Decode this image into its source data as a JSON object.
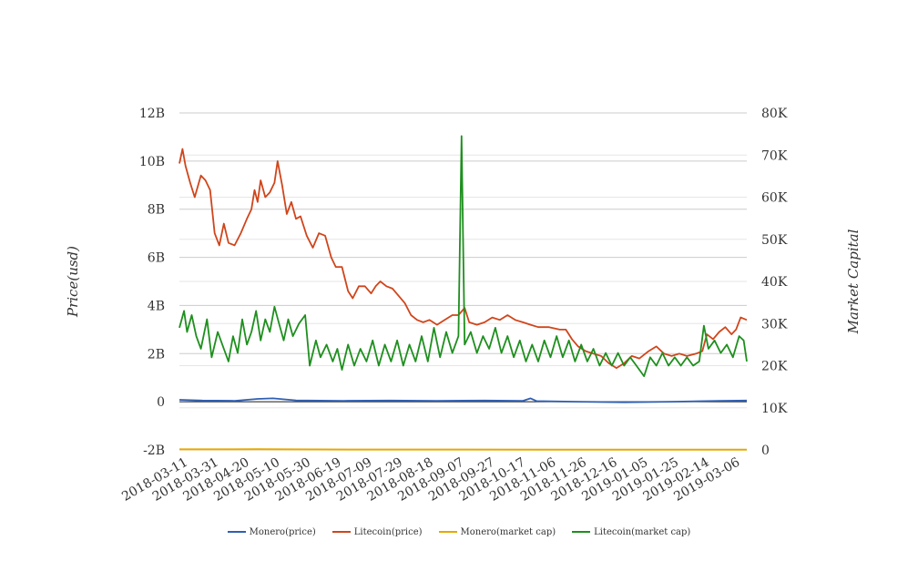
{
  "chart_data": {
    "type": "line",
    "y_left_label": "Price(usd)",
    "y_right_label": "Market Capital",
    "y_left_ticks": [
      "-2B",
      "0",
      "2B",
      "4B",
      "6B",
      "8B",
      "10B",
      "12B"
    ],
    "y_right_ticks": [
      "0",
      "10K",
      "20K",
      "30K",
      "40K",
      "50K",
      "60K",
      "70K",
      "80K"
    ],
    "y_left_range": [
      -2000000000,
      12000000000
    ],
    "y_right_range": [
      0,
      80000
    ],
    "x_start": "2018-03-05",
    "x_end": "2019-03-10",
    "x_ticks": [
      "2018-03-11",
      "2018-03-31",
      "2018-04-20",
      "2018-05-10",
      "2018-05-30",
      "2018-06-19",
      "2018-07-09",
      "2018-07-29",
      "2018-08-18",
      "2018-09-07",
      "2018-09-27",
      "2018-10-17",
      "2018-11-06",
      "2018-11-26",
      "2018-12-16",
      "2019-01-05",
      "2019-01-25",
      "2019-02-14",
      "2019-03-06"
    ],
    "grid": true,
    "legend_position": "bottom",
    "series": [
      {
        "name": "Monero(price)",
        "color": "#2f5fb3",
        "axis": "left",
        "points": [
          [
            "2018-03-05",
            80000000.0
          ],
          [
            "2018-03-20",
            50000000.0
          ],
          [
            "2018-04-10",
            40000000.0
          ],
          [
            "2018-04-25",
            120000000.0
          ],
          [
            "2018-05-05",
            140000000.0
          ],
          [
            "2018-05-20",
            60000000.0
          ],
          [
            "2018-06-20",
            40000000.0
          ],
          [
            "2018-07-20",
            50000000.0
          ],
          [
            "2018-08-20",
            40000000.0
          ],
          [
            "2018-09-20",
            50000000.0
          ],
          [
            "2018-10-15",
            40000000.0
          ],
          [
            "2018-10-20",
            140000000.0
          ],
          [
            "2018-10-24",
            30000000.0
          ],
          [
            "2018-11-20",
            0.0
          ],
          [
            "2018-12-20",
            -20000000.0
          ],
          [
            "2019-01-20",
            0.0
          ],
          [
            "2019-02-20",
            40000000.0
          ],
          [
            "2019-03-10",
            50000000.0
          ]
        ]
      },
      {
        "name": "Litecoin(price)",
        "color": "#d0451b",
        "axis": "left",
        "points": [
          [
            "2018-03-05",
            9900000000.0
          ],
          [
            "2018-03-07",
            10500000000.0
          ],
          [
            "2018-03-09",
            9800000000.0
          ],
          [
            "2018-03-12",
            9100000000.0
          ],
          [
            "2018-03-15",
            8500000000.0
          ],
          [
            "2018-03-19",
            9400000000.0
          ],
          [
            "2018-03-22",
            9200000000.0
          ],
          [
            "2018-03-25",
            8800000000.0
          ],
          [
            "2018-03-28",
            7000000000.0
          ],
          [
            "2018-03-31",
            6500000000.0
          ],
          [
            "2018-04-03",
            7400000000.0
          ],
          [
            "2018-04-06",
            6600000000.0
          ],
          [
            "2018-04-10",
            6500000000.0
          ],
          [
            "2018-04-14",
            7000000000.0
          ],
          [
            "2018-04-18",
            7600000000.0
          ],
          [
            "2018-04-21",
            8000000000.0
          ],
          [
            "2018-04-23",
            8800000000.0
          ],
          [
            "2018-04-25",
            8300000000.0
          ],
          [
            "2018-04-27",
            9200000000.0
          ],
          [
            "2018-04-30",
            8500000000.0
          ],
          [
            "2018-05-03",
            8700000000.0
          ],
          [
            "2018-05-06",
            9100000000.0
          ],
          [
            "2018-05-08",
            10000000000.0
          ],
          [
            "2018-05-11",
            9000000000.0
          ],
          [
            "2018-05-14",
            7800000000.0
          ],
          [
            "2018-05-17",
            8300000000.0
          ],
          [
            "2018-05-20",
            7600000000.0
          ],
          [
            "2018-05-23",
            7700000000.0
          ],
          [
            "2018-05-27",
            6900000000.0
          ],
          [
            "2018-05-31",
            6400000000.0
          ],
          [
            "2018-06-04",
            7000000000.0
          ],
          [
            "2018-06-08",
            6900000000.0
          ],
          [
            "2018-06-12",
            6000000000.0
          ],
          [
            "2018-06-15",
            5600000000.0
          ],
          [
            "2018-06-19",
            5600000000.0
          ],
          [
            "2018-06-23",
            4600000000.0
          ],
          [
            "2018-06-26",
            4300000000.0
          ],
          [
            "2018-06-30",
            4800000000.0
          ],
          [
            "2018-07-04",
            4800000000.0
          ],
          [
            "2018-07-08",
            4500000000.0
          ],
          [
            "2018-07-11",
            4800000000.0
          ],
          [
            "2018-07-14",
            5000000000.0
          ],
          [
            "2018-07-18",
            4800000000.0
          ],
          [
            "2018-07-22",
            4700000000.0
          ],
          [
            "2018-07-26",
            4400000000.0
          ],
          [
            "2018-07-30",
            4100000000.0
          ],
          [
            "2018-08-03",
            3600000000.0
          ],
          [
            "2018-08-07",
            3400000000.0
          ],
          [
            "2018-08-11",
            3300000000.0
          ],
          [
            "2018-08-15",
            3400000000.0
          ],
          [
            "2018-08-20",
            3200000000.0
          ],
          [
            "2018-08-25",
            3400000000.0
          ],
          [
            "2018-08-30",
            3600000000.0
          ],
          [
            "2018-09-03",
            3600000000.0
          ],
          [
            "2018-09-07",
            3900000000.0
          ],
          [
            "2018-09-10",
            3300000000.0
          ],
          [
            "2018-09-15",
            3200000000.0
          ],
          [
            "2018-09-20",
            3300000000.0
          ],
          [
            "2018-09-25",
            3500000000.0
          ],
          [
            "2018-09-30",
            3400000000.0
          ],
          [
            "2018-10-05",
            3600000000.0
          ],
          [
            "2018-10-10",
            3400000000.0
          ],
          [
            "2018-10-15",
            3300000000.0
          ],
          [
            "2018-10-20",
            3200000000.0
          ],
          [
            "2018-10-25",
            3100000000.0
          ],
          [
            "2018-11-01",
            3100000000.0
          ],
          [
            "2018-11-08",
            3000000000.0
          ],
          [
            "2018-11-12",
            3000000000.0
          ],
          [
            "2018-11-16",
            2600000000.0
          ],
          [
            "2018-11-20",
            2300000000.0
          ],
          [
            "2018-11-25",
            2100000000.0
          ],
          [
            "2018-11-30",
            2000000000.0
          ],
          [
            "2018-12-05",
            1900000000.0
          ],
          [
            "2018-12-10",
            1600000000.0
          ],
          [
            "2018-12-15",
            1400000000.0
          ],
          [
            "2018-12-20",
            1600000000.0
          ],
          [
            "2018-12-25",
            1900000000.0
          ],
          [
            "2018-12-30",
            1800000000.0
          ],
          [
            "2019-01-05",
            2100000000.0
          ],
          [
            "2019-01-10",
            2300000000.0
          ],
          [
            "2019-01-15",
            2000000000.0
          ],
          [
            "2019-01-20",
            1900000000.0
          ],
          [
            "2019-01-25",
            2000000000.0
          ],
          [
            "2019-01-30",
            1900000000.0
          ],
          [
            "2019-02-05",
            2000000000.0
          ],
          [
            "2019-02-09",
            2100000000.0
          ],
          [
            "2019-02-12",
            2800000000.0
          ],
          [
            "2019-02-16",
            2600000000.0
          ],
          [
            "2019-02-20",
            2900000000.0
          ],
          [
            "2019-02-24",
            3100000000.0
          ],
          [
            "2019-02-28",
            2800000000.0
          ],
          [
            "2019-03-03",
            3000000000.0
          ],
          [
            "2019-03-06",
            3500000000.0
          ],
          [
            "2019-03-10",
            3400000000.0
          ]
        ]
      },
      {
        "name": "Monero(market cap)",
        "color": "#e6a800",
        "axis": "right",
        "points": [
          [
            "2018-03-05",
            120
          ],
          [
            "2018-04-25",
            160
          ],
          [
            "2018-05-10",
            140
          ],
          [
            "2018-07-01",
            90
          ],
          [
            "2018-09-01",
            80
          ],
          [
            "2018-11-01",
            60
          ],
          [
            "2019-01-01",
            40
          ],
          [
            "2019-03-10",
            50
          ]
        ]
      },
      {
        "name": "Litecoin(market cap)",
        "color": "#1e8f1e",
        "axis": "right",
        "points": [
          [
            "2018-03-05",
            29000
          ],
          [
            "2018-03-08",
            33000
          ],
          [
            "2018-03-10",
            28000
          ],
          [
            "2018-03-13",
            32000
          ],
          [
            "2018-03-16",
            27000
          ],
          [
            "2018-03-19",
            24000
          ],
          [
            "2018-03-23",
            31000
          ],
          [
            "2018-03-26",
            22000
          ],
          [
            "2018-03-30",
            28000
          ],
          [
            "2018-04-03",
            24000
          ],
          [
            "2018-04-06",
            21000
          ],
          [
            "2018-04-09",
            27000
          ],
          [
            "2018-04-12",
            23000
          ],
          [
            "2018-04-15",
            31000
          ],
          [
            "2018-04-18",
            25000
          ],
          [
            "2018-04-21",
            28000
          ],
          [
            "2018-04-24",
            33000
          ],
          [
            "2018-04-27",
            26000
          ],
          [
            "2018-04-30",
            31000
          ],
          [
            "2018-05-03",
            28000
          ],
          [
            "2018-05-06",
            34000
          ],
          [
            "2018-05-09",
            30000
          ],
          [
            "2018-05-12",
            26000
          ],
          [
            "2018-05-15",
            31000
          ],
          [
            "2018-05-18",
            27000
          ],
          [
            "2018-05-22",
            30000
          ],
          [
            "2018-05-26",
            32000
          ],
          [
            "2018-05-29",
            20000
          ],
          [
            "2018-06-02",
            26000
          ],
          [
            "2018-06-05",
            22000
          ],
          [
            "2018-06-09",
            25000
          ],
          [
            "2018-06-13",
            21000
          ],
          [
            "2018-06-16",
            24000
          ],
          [
            "2018-06-19",
            19000
          ],
          [
            "2018-06-23",
            25000
          ],
          [
            "2018-06-27",
            20000
          ],
          [
            "2018-07-01",
            24000
          ],
          [
            "2018-07-05",
            21000
          ],
          [
            "2018-07-09",
            26000
          ],
          [
            "2018-07-13",
            20000
          ],
          [
            "2018-07-17",
            25000
          ],
          [
            "2018-07-21",
            21000
          ],
          [
            "2018-07-25",
            26000
          ],
          [
            "2018-07-29",
            20000
          ],
          [
            "2018-08-02",
            25000
          ],
          [
            "2018-08-06",
            21000
          ],
          [
            "2018-08-10",
            27000
          ],
          [
            "2018-08-14",
            21000
          ],
          [
            "2018-08-18",
            29000
          ],
          [
            "2018-08-22",
            22000
          ],
          [
            "2018-08-26",
            28000
          ],
          [
            "2018-08-30",
            23000
          ],
          [
            "2018-09-03",
            27000
          ],
          [
            "2018-09-05",
            74500
          ],
          [
            "2018-09-07",
            25000
          ],
          [
            "2018-09-11",
            28000
          ],
          [
            "2018-09-15",
            23000
          ],
          [
            "2018-09-19",
            27000
          ],
          [
            "2018-09-23",
            24000
          ],
          [
            "2018-09-27",
            29000
          ],
          [
            "2018-10-01",
            23000
          ],
          [
            "2018-10-05",
            27000
          ],
          [
            "2018-10-09",
            22000
          ],
          [
            "2018-10-13",
            26000
          ],
          [
            "2018-10-17",
            21000
          ],
          [
            "2018-10-21",
            25000
          ],
          [
            "2018-10-25",
            21000
          ],
          [
            "2018-10-29",
            26000
          ],
          [
            "2018-11-02",
            22000
          ],
          [
            "2018-11-06",
            27000
          ],
          [
            "2018-11-10",
            22000
          ],
          [
            "2018-11-14",
            26000
          ],
          [
            "2018-11-18",
            21000
          ],
          [
            "2018-11-22",
            25000
          ],
          [
            "2018-11-26",
            21000
          ],
          [
            "2018-11-30",
            24000
          ],
          [
            "2018-12-04",
            20000
          ],
          [
            "2018-12-08",
            23000
          ],
          [
            "2018-12-12",
            20000
          ],
          [
            "2018-12-16",
            23000
          ],
          [
            "2018-12-20",
            20000
          ],
          [
            "2018-12-24",
            22000
          ],
          [
            "2018-12-28",
            20000
          ],
          [
            "2019-01-02",
            17500
          ],
          [
            "2019-01-06",
            22000
          ],
          [
            "2019-01-10",
            20000
          ],
          [
            "2019-01-14",
            23000
          ],
          [
            "2019-01-18",
            20000
          ],
          [
            "2019-01-22",
            22000
          ],
          [
            "2019-01-26",
            20000
          ],
          [
            "2019-01-30",
            22000
          ],
          [
            "2019-02-03",
            20000
          ],
          [
            "2019-02-07",
            21000
          ],
          [
            "2019-02-10",
            29500
          ],
          [
            "2019-02-13",
            24000
          ],
          [
            "2019-02-17",
            26000
          ],
          [
            "2019-02-21",
            23000
          ],
          [
            "2019-02-25",
            25000
          ],
          [
            "2019-03-01",
            22000
          ],
          [
            "2019-03-05",
            27000
          ],
          [
            "2019-03-08",
            26000
          ],
          [
            "2019-03-10",
            21000
          ]
        ]
      }
    ]
  }
}
